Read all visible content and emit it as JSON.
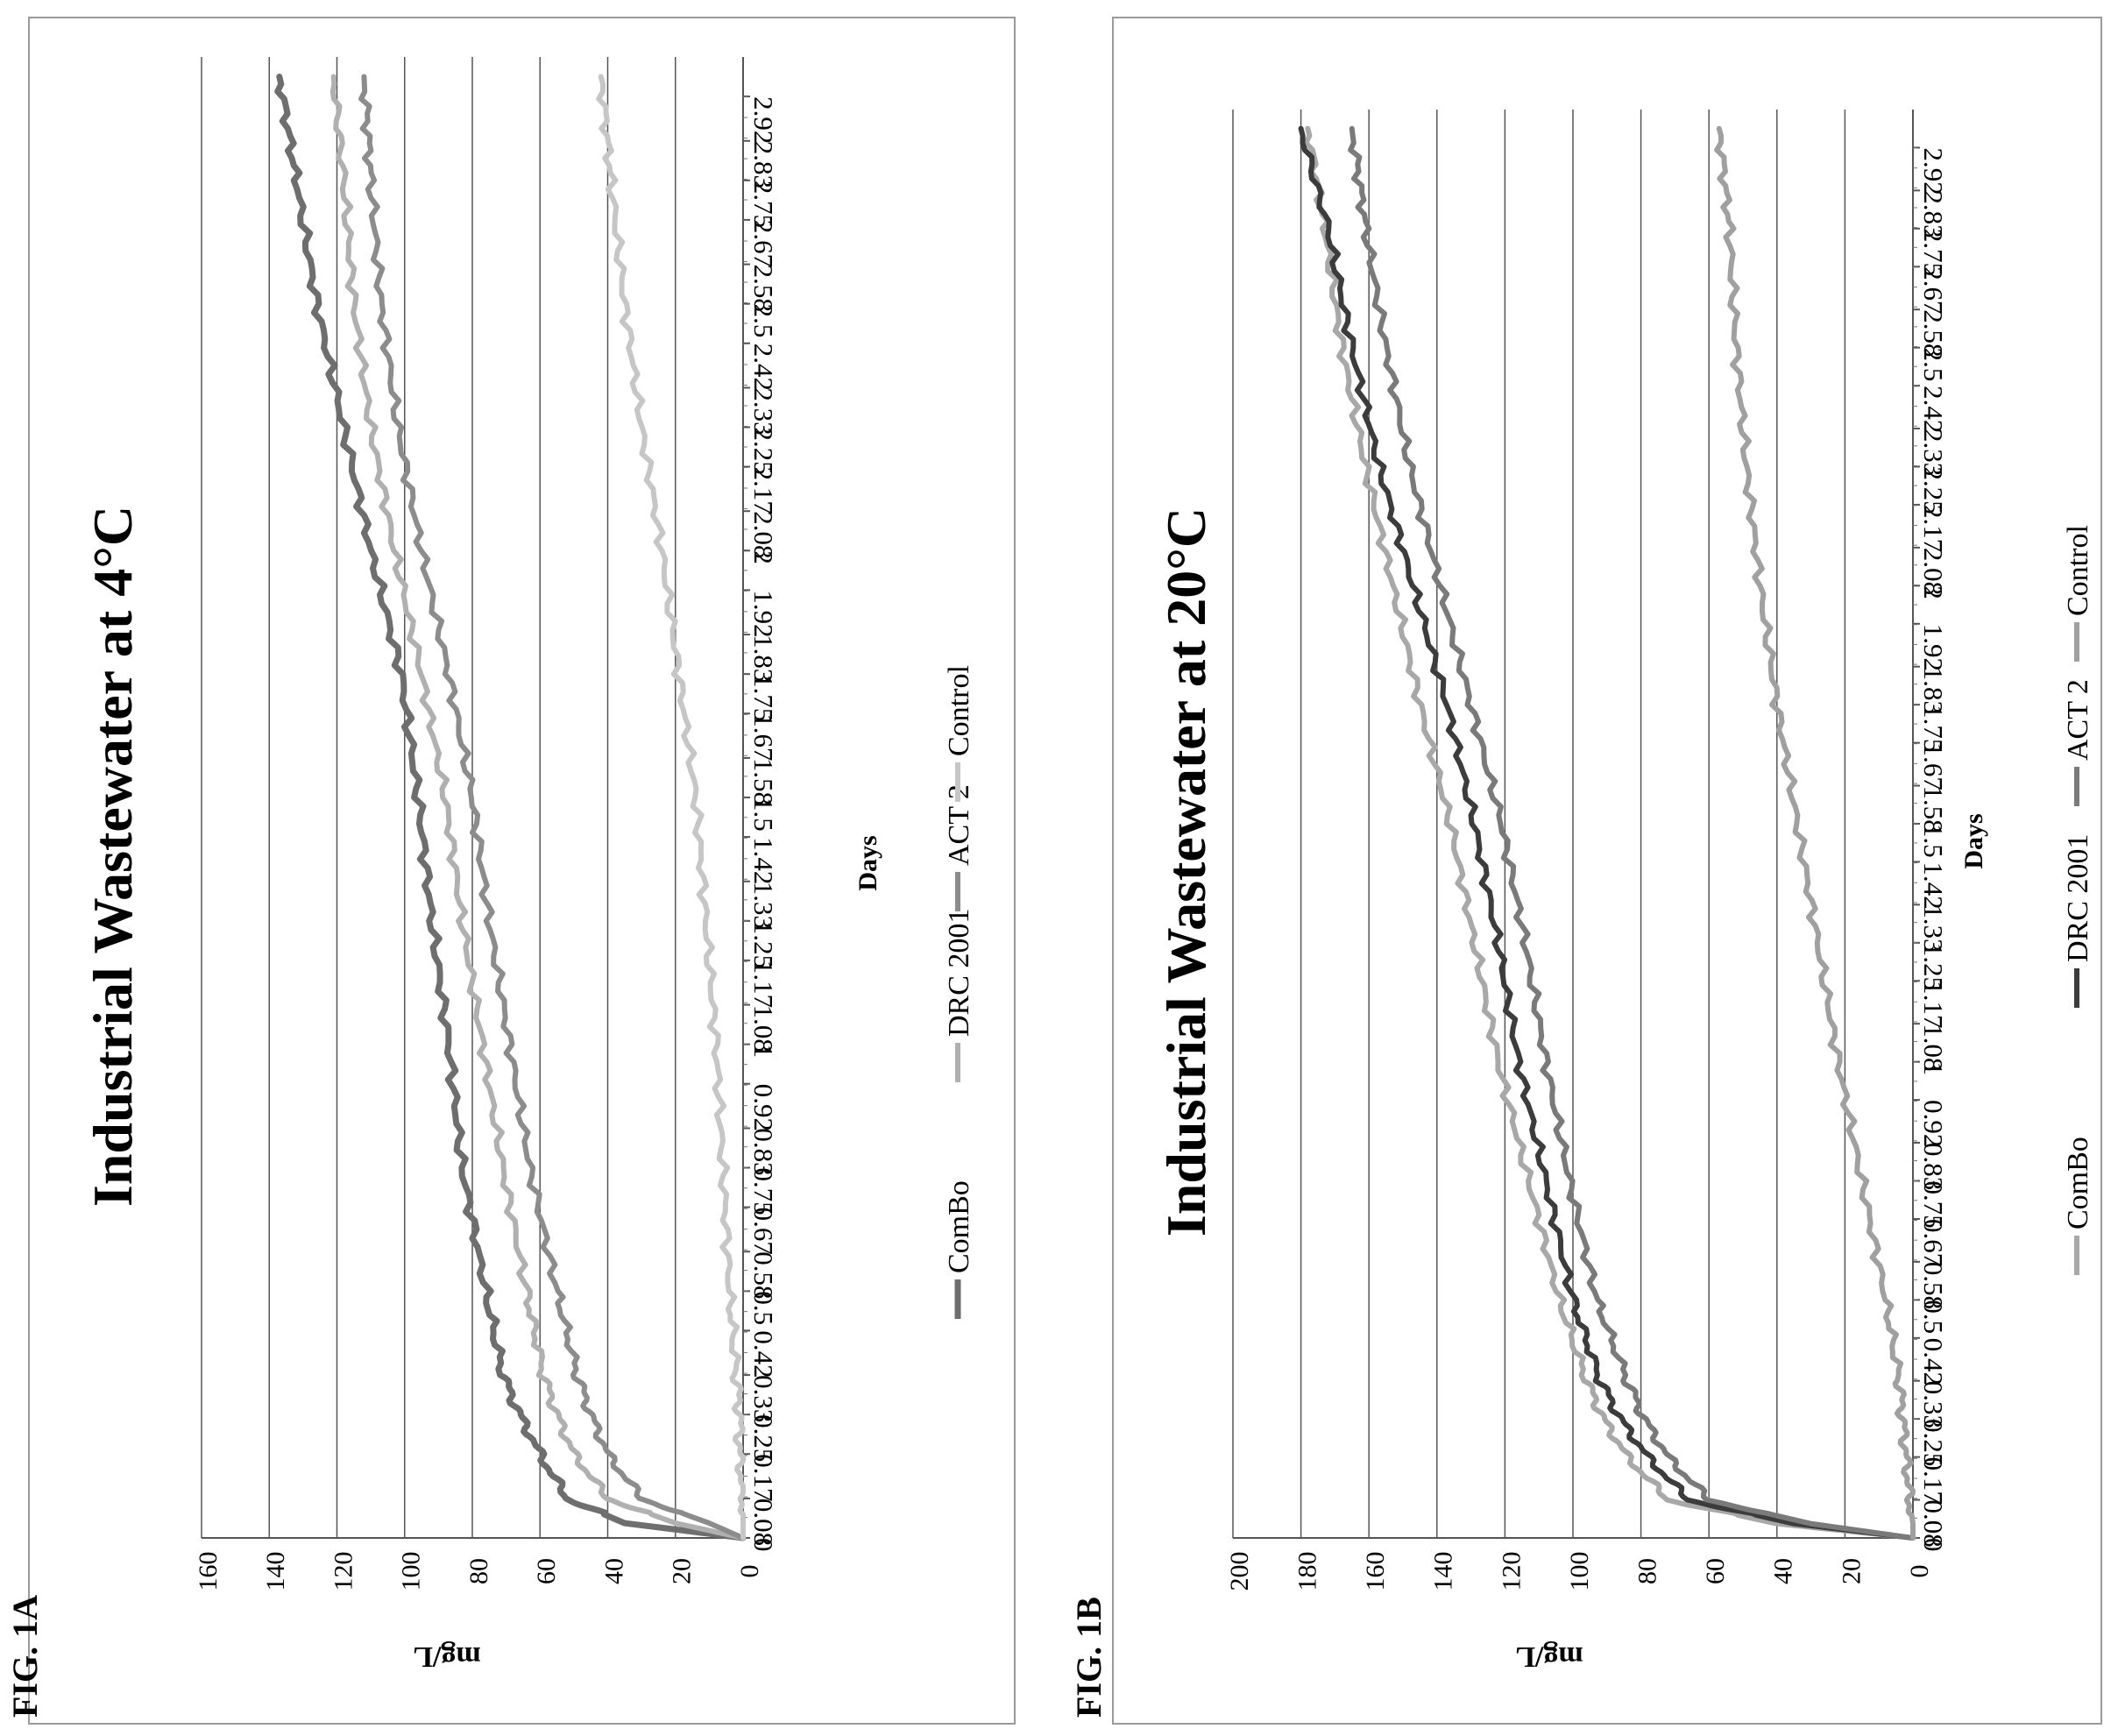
{
  "figures": [
    {
      "fig_label": "FIG. 1A",
      "chart_data": {
        "type": "line",
        "title": "Industrial Wastewater at 4°C",
        "xlabel": "Days",
        "ylabel": "mg/L",
        "ylim": [
          0,
          160
        ],
        "yticks": [
          0,
          20,
          40,
          60,
          80,
          100,
          120,
          140,
          160
        ],
        "xticks": [
          "0",
          "0.08",
          "0.17",
          "0.25",
          "0.33",
          "0.42",
          "0.5",
          "0.58",
          "0.67",
          "0.75",
          "0.83",
          "0.92",
          "1",
          "1.08",
          "1.17",
          "1.25",
          "1.33",
          "1.42",
          "1.5",
          "1.58",
          "1.67",
          "1.75",
          "1.83",
          "1.92",
          "2",
          "2.08",
          "2.17",
          "2.25",
          "2.33",
          "2.42",
          "2.5",
          "2.58",
          "2.67",
          "2.75",
          "2.83",
          "2.92"
        ],
        "grid": true,
        "legend": "bottom",
        "x_day": [
          0,
          0.03,
          0.08,
          0.17,
          0.25,
          0.33,
          0.5,
          0.75,
          1.0,
          1.25,
          1.5,
          1.75,
          2.0,
          2.25,
          2.5,
          2.75,
          2.96
        ],
        "series": [
          {
            "name": "ComBo",
            "color": "#6e6e6e",
            "width": 7,
            "y": [
              0,
              35,
              52,
              60,
              66,
              71,
              76,
              83,
              87,
              92,
              96,
              101,
              110,
              118,
              126,
              132,
              137
            ]
          },
          {
            "name": "DRC 2001",
            "color": "#b0b0b0",
            "width": 6,
            "y": [
              0,
              20,
              40,
              50,
              55,
              59,
              64,
              71,
              77,
              83,
              88,
              95,
              103,
              110,
              115,
              118,
              121
            ]
          },
          {
            "name": "ACT 2",
            "color": "#8c8c8c",
            "width": 6,
            "y": [
              0,
              10,
              30,
              40,
              45,
              49,
              55,
              63,
              69,
              75,
              80,
              87,
              95,
              102,
              107,
              110,
              112
            ]
          },
          {
            "name": "Control",
            "color": "#c6c6c6",
            "width": 6,
            "y": [
              0,
              0,
              0,
              1,
              1,
              2,
              4,
              6,
              8,
              11,
              14,
              19,
              24,
              30,
              35,
              39,
              42
            ]
          }
        ]
      }
    },
    {
      "fig_label": "FIG. 1B",
      "chart_data": {
        "type": "line",
        "title": "Industrial Wastewater at 20°C",
        "xlabel": "Days",
        "ylabel": "mg/L",
        "ylim": [
          0,
          200
        ],
        "yticks": [
          0,
          20,
          40,
          60,
          80,
          100,
          120,
          140,
          160,
          180,
          200
        ],
        "xticks": [
          "0",
          "0.08",
          "0.17",
          "0.25",
          "0.33",
          "0.42",
          "0.5",
          "0.58",
          "0.67",
          "0.75",
          "0.83",
          "0.92",
          "1",
          "1.08",
          "1.17",
          "1.25",
          "1.33",
          "1.42",
          "1.5",
          "1.58",
          "1.67",
          "1.75",
          "1.83",
          "1.92",
          "2",
          "2.08",
          "2.17",
          "2.25",
          "2.33",
          "2.42",
          "2.5",
          "2.58",
          "2.67",
          "2.75",
          "2.83",
          "2.92"
        ],
        "grid": true,
        "legend": "bottom",
        "x_day": [
          0,
          0.03,
          0.08,
          0.17,
          0.25,
          0.33,
          0.5,
          0.75,
          1.0,
          1.25,
          1.5,
          1.75,
          2.0,
          2.25,
          2.5,
          2.75,
          2.96
        ],
        "series": [
          {
            "name": "ComBo",
            "color": "#a8a8a8",
            "width": 6,
            "y": [
              0,
              40,
              72,
              84,
              91,
              96,
              104,
              113,
              122,
              129,
              136,
              145,
              153,
              161,
              168,
              173,
              178
            ]
          },
          {
            "name": "DRC 2001",
            "color": "#3c3c3c",
            "width": 6,
            "y": [
              0,
              35,
              66,
              78,
              86,
              92,
              100,
              108,
              116,
              122,
              129,
              137,
              147,
              157,
              165,
              172,
              180
            ]
          },
          {
            "name": "ACT 2",
            "color": "#7a7a7a",
            "width": 6,
            "y": [
              0,
              30,
              60,
              72,
              79,
              84,
              93,
              101,
              108,
              114,
              121,
              130,
              139,
              148,
              155,
              161,
              165
            ]
          },
          {
            "name": "Control",
            "color": "#a0a0a0",
            "width": 6,
            "y": [
              0,
              0,
              1,
              2,
              3,
              4,
              8,
              15,
              22,
              28,
              34,
              40,
              45,
              49,
              52,
              54,
              57
            ]
          }
        ]
      }
    }
  ]
}
